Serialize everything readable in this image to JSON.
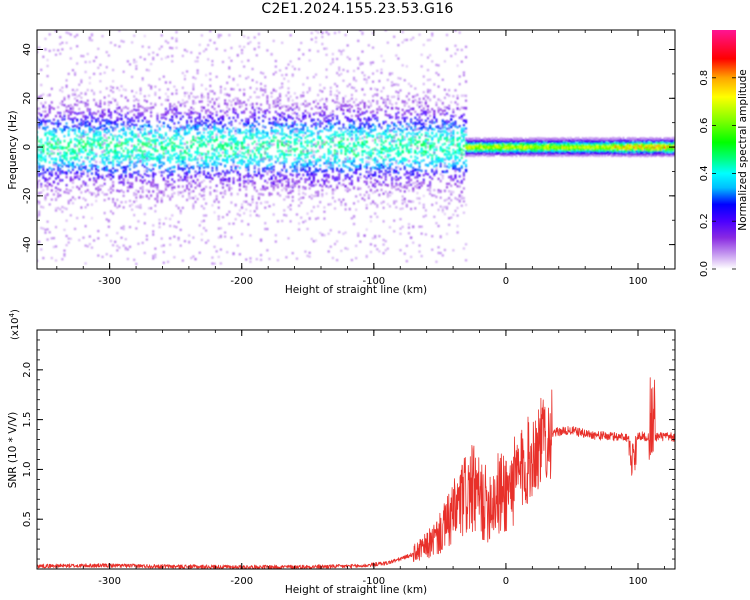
{
  "title": "C2E1.2024.155.23.53.G16",
  "chart_data": [
    {
      "type": "heatmap",
      "xlabel": "Height of straight line (km)",
      "ylabel": "Frequency (Hz)",
      "xlim": [
        -355,
        128
      ],
      "ylim": [
        -50,
        48
      ],
      "xticks": [
        -300,
        -200,
        -100,
        0,
        100
      ],
      "yticks": [
        -40,
        -20,
        0,
        20,
        40
      ],
      "colorbar": {
        "label": "Normalized spectral amplitude",
        "range": [
          0,
          1
        ],
        "ticks": [
          "0.0",
          "0.2",
          "0.4",
          "0.6",
          "0.8"
        ],
        "colormap": [
          "#ffffff",
          "#c79cf0",
          "#8a2be2",
          "#4b00ff",
          "#0000ff",
          "#00bfff",
          "#00ffff",
          "#00ff80",
          "#00ff00",
          "#7fff00",
          "#ffff00",
          "#ffa500",
          "#ff0000",
          "#ff1493"
        ]
      },
      "features": [
        {
          "region": "-355 to -30 km",
          "description": "broadband scattered energy, strongest near 0 Hz (amplitude ~0.2-0.45)"
        },
        {
          "region": "-30 to 128 km",
          "description": "narrow tone near 0 Hz (amplitude ~0.5-0.8)"
        }
      ]
    },
    {
      "type": "line",
      "xlabel": "Height of straight line (km)",
      "ylabel": "SNR (10 * V/V)",
      "yscale_label": "(x10",
      "yscale_exp": "4",
      "xlim": [
        -355,
        128
      ],
      "ylim": [
        0,
        24000
      ],
      "xticks": [
        -300,
        -200,
        -100,
        0,
        100
      ],
      "yticks": [
        5000,
        10000,
        15000,
        20000
      ],
      "ytick_labels": [
        "0.5",
        "1.0",
        "1.5",
        "2.0"
      ],
      "color": "#e8302a",
      "series": [
        {
          "x": [
            -355,
            -300,
            -250,
            -200,
            -150,
            -110,
            -90,
            -80,
            -70,
            -60,
            -50,
            -45,
            -40,
            -35,
            -30,
            -25,
            -20,
            -15,
            -10,
            -5,
            0,
            5,
            10,
            15,
            20,
            25,
            30,
            40,
            50,
            60,
            70,
            80,
            90,
            95,
            100,
            105,
            110,
            115,
            120,
            128
          ],
          "values": [
            300,
            350,
            250,
            200,
            220,
            300,
            600,
            1000,
            1500,
            2300,
            3500,
            4500,
            5500,
            6500,
            7500,
            8000,
            7000,
            6500,
            7000,
            7500,
            7800,
            8500,
            9500,
            10500,
            11500,
            12500,
            13300,
            13800,
            13900,
            13600,
            13400,
            13300,
            13300,
            13100,
            13400,
            13300,
            13200,
            13300,
            13300,
            13200
          ]
        }
      ]
    }
  ]
}
